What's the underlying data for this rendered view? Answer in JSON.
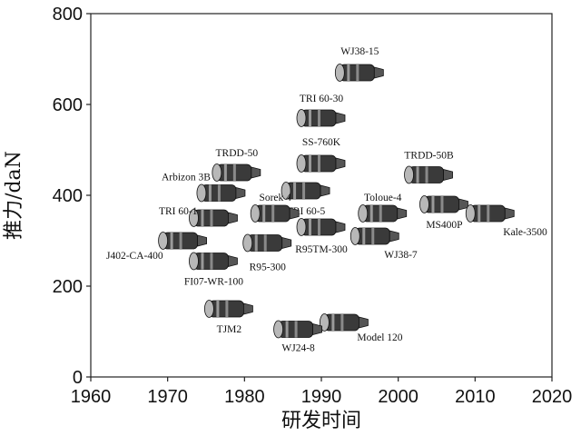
{
  "chart_data": {
    "type": "scatter",
    "title": "",
    "xlabel": "研发时间",
    "ylabel": "推力/daN",
    "xlim": [
      1960,
      2020
    ],
    "ylim": [
      0,
      800
    ],
    "xticks": [
      1960,
      1970,
      1980,
      1990,
      2000,
      2010,
      2020
    ],
    "yticks": [
      0,
      200,
      400,
      600,
      800
    ],
    "grid": false,
    "legend": "none",
    "points": [
      {
        "name": "WJ38-15",
        "x": 1995,
        "y": 670
      },
      {
        "name": "TRI 60-30",
        "x": 1990,
        "y": 570
      },
      {
        "name": "SS-760K",
        "x": 1990,
        "y": 470
      },
      {
        "name": "TRDD-50",
        "x": 1979,
        "y": 450
      },
      {
        "name": "TRDD-50B",
        "x": 2004,
        "y": 445
      },
      {
        "name": "Arbizon 3B",
        "x": 1977,
        "y": 405
      },
      {
        "name": "TRI 60-5",
        "x": 1988,
        "y": 410
      },
      {
        "name": "Sorek 4",
        "x": 1984,
        "y": 360
      },
      {
        "name": "Toloue-4",
        "x": 1998,
        "y": 360
      },
      {
        "name": "TRI 60-1",
        "x": 1976,
        "y": 350
      },
      {
        "name": "MS400P",
        "x": 2006,
        "y": 380
      },
      {
        "name": "Kale-3500",
        "x": 2012,
        "y": 360
      },
      {
        "name": "R95TM-300",
        "x": 1990,
        "y": 330
      },
      {
        "name": "WJ38-7",
        "x": 1997,
        "y": 310
      },
      {
        "name": "J402-CA-400",
        "x": 1972,
        "y": 300
      },
      {
        "name": "R95-300",
        "x": 1983,
        "y": 295
      },
      {
        "name": "FI07-WR-100",
        "x": 1976,
        "y": 255
      },
      {
        "name": "TJM2",
        "x": 1978,
        "y": 150
      },
      {
        "name": "Model 120",
        "x": 1993,
        "y": 120
      },
      {
        "name": "WJ24-8",
        "x": 1987,
        "y": 105
      }
    ]
  }
}
